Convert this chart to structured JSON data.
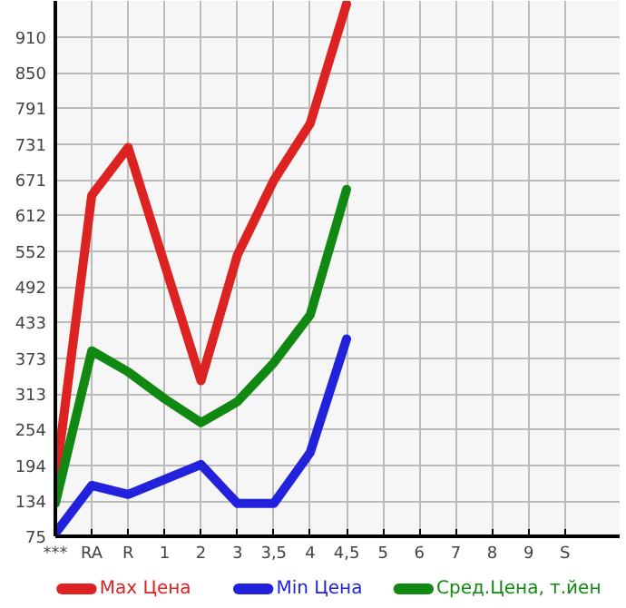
{
  "chart_data": {
    "type": "line",
    "categories": [
      "***",
      "RA",
      "R",
      "1",
      "2",
      "3",
      "3,5",
      "4",
      "4,5",
      "5",
      "6",
      "7",
      "8",
      "9",
      "S"
    ],
    "series": [
      {
        "name": "Max Цена",
        "color": "#dd2222",
        "values": [
          165,
          645,
          725,
          530,
          335,
          545,
          670,
          765,
          965,
          null,
          null,
          null,
          null,
          null,
          null
        ]
      },
      {
        "name": "Min Цена",
        "color": "#2222dd",
        "values": [
          80,
          160,
          145,
          170,
          195,
          130,
          130,
          215,
          405,
          null,
          null,
          null,
          null,
          null,
          null
        ]
      },
      {
        "name": "Сред.Цена, т.йен",
        "color": "#118811",
        "values": [
          130,
          385,
          350,
          305,
          265,
          300,
          365,
          445,
          655,
          null,
          null,
          null,
          null,
          null,
          null
        ]
      }
    ],
    "ylim": [
      75,
      970
    ],
    "yticks": [
      75,
      134,
      194,
      254,
      313,
      373,
      433,
      492,
      552,
      612,
      671,
      731,
      791,
      850,
      910
    ],
    "grid": true,
    "legend": "bottom",
    "marker": "none",
    "line_style": "solid"
  }
}
